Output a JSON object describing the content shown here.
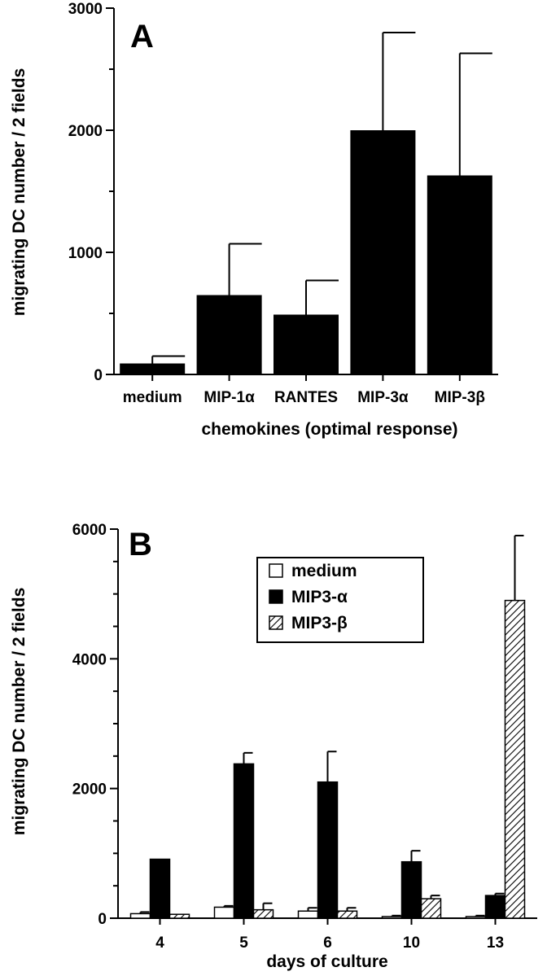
{
  "chart_data": [
    {
      "type": "bar",
      "panel_label": "A",
      "categories": [
        "medium",
        "MIP-1α",
        "RANTES",
        "MIP-3α",
        "MIP-3β"
      ],
      "values": [
        90,
        650,
        490,
        2000,
        1630
      ],
      "errors": [
        60,
        420,
        280,
        800,
        1000
      ],
      "xlabel": "chemokines (optimal response)",
      "ylabel": "migrating DC number / 2 fields",
      "ylim": [
        0,
        3000
      ],
      "yticks": [
        "0",
        "1000",
        "2000",
        "3000"
      ],
      "bar_color": "#000000",
      "grid": false
    },
    {
      "type": "bar",
      "panel_label": "B",
      "categories": [
        "4",
        "5",
        "6",
        "10",
        "13"
      ],
      "series": [
        {
          "name": "medium",
          "fill": "white",
          "values": [
            70,
            170,
            110,
            25,
            25
          ],
          "errors": [
            25,
            20,
            50,
            15,
            15
          ]
        },
        {
          "name": "MIP3-α",
          "fill": "black",
          "values": [
            910,
            2380,
            2100,
            870,
            350
          ],
          "errors": [
            0,
            170,
            470,
            170,
            30
          ]
        },
        {
          "name": "MIP3-β",
          "fill": "hatched",
          "values": [
            60,
            130,
            110,
            300,
            4900
          ],
          "errors": [
            0,
            100,
            50,
            50,
            1000
          ]
        }
      ],
      "xlabel": "days of culture",
      "ylabel": "migrating DC number / 2 fields",
      "ylim": [
        0,
        6000
      ],
      "yticks": [
        "0",
        "2000",
        "4000",
        "6000"
      ],
      "legend_placement": "top-center",
      "grid": false
    }
  ]
}
